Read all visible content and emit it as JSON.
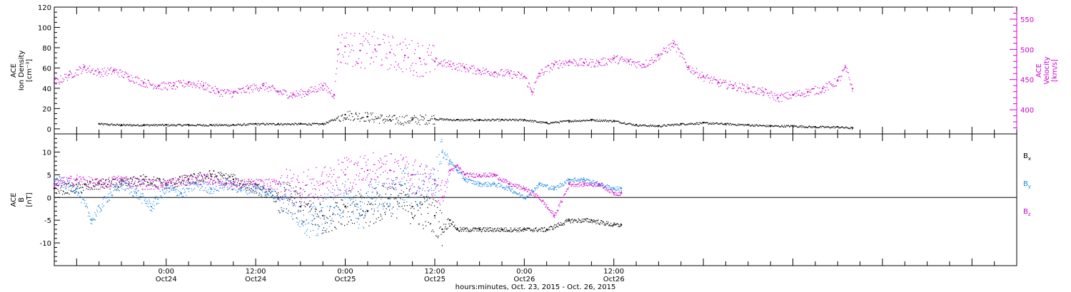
{
  "chart_data": [
    {
      "type": "scatter",
      "panel": "density_velocity",
      "left_ylabel": [
        "ACE",
        "Ion Density",
        "[cm⁻³]"
      ],
      "right_ylabel": [
        "ACE",
        "Velocity",
        "[km/s]"
      ],
      "left_ylim": [
        -5,
        120
      ],
      "left_yticks": [
        "0",
        "20",
        "40",
        "60",
        "80",
        "100",
        "120"
      ],
      "right_ylim": [
        360,
        570
      ],
      "right_yticks": [
        "400",
        "450",
        "500",
        "550"
      ],
      "series": [
        {
          "name": "",
          "axis": "left",
          "color": "#000000",
          "x": [
            -9,
            -6,
            -3,
            0,
            3,
            6,
            9,
            12,
            15,
            18,
            21,
            24,
            27,
            30,
            33,
            36,
            39,
            42,
            45,
            48,
            51,
            54,
            57,
            60,
            63,
            66,
            69,
            72,
            75,
            78,
            81,
            84,
            87,
            90,
            92
          ],
          "y": [
            5,
            4,
            4,
            4,
            4,
            4,
            4,
            5,
            5,
            5,
            5,
            14,
            12,
            9,
            9,
            10,
            9,
            9,
            9,
            9,
            6,
            8,
            9,
            8,
            4,
            3,
            5,
            6,
            5,
            4,
            3,
            3,
            2,
            2,
            1
          ]
        },
        {
          "name": "",
          "axis": "right",
          "color": "#cc00cc",
          "x": [
            -15,
            -13,
            -11,
            -9,
            -7,
            -5,
            -3,
            -1,
            1,
            3,
            5,
            7,
            9,
            11,
            13,
            15,
            17,
            19,
            21,
            22.5,
            23,
            24,
            26,
            28,
            30,
            32,
            34,
            36,
            38,
            40,
            42,
            44,
            46,
            48,
            49,
            50,
            52,
            54,
            56,
            58,
            60,
            62,
            64,
            66,
            68,
            70,
            72,
            74,
            76,
            78,
            80,
            82,
            84,
            86,
            88,
            90,
            91,
            92
          ],
          "y": [
            445,
            458,
            470,
            462,
            465,
            455,
            445,
            440,
            440,
            445,
            440,
            430,
            428,
            435,
            440,
            430,
            425,
            430,
            440,
            425,
            500,
            505,
            498,
            500,
            495,
            490,
            485,
            480,
            475,
            470,
            465,
            462,
            460,
            455,
            430,
            460,
            475,
            480,
            478,
            478,
            485,
            480,
            475,
            490,
            510,
            470,
            455,
            445,
            440,
            435,
            430,
            420,
            425,
            430,
            435,
            448,
            470,
            435
          ]
        }
      ]
    },
    {
      "type": "scatter",
      "panel": "magnetic_field",
      "ylabel": [
        "ACE",
        "B",
        "[nT]"
      ],
      "ylim": [
        -15,
        14
      ],
      "yticks": [
        "-10",
        "-5",
        "0",
        "5",
        "10"
      ],
      "zero_line": true,
      "xlabel": "hours:minutes, Oct. 23, 2015 - Oct. 26, 2015",
      "xlim": [
        -15,
        114
      ],
      "xticks": [
        {
          "x": 0,
          "time": "0:00",
          "date": "Oct24"
        },
        {
          "x": 12,
          "time": "12:00",
          "date": "Oct24"
        },
        {
          "x": 24,
          "time": "0:00",
          "date": "Oct25"
        },
        {
          "x": 36,
          "time": "12:00",
          "date": "Oct25"
        },
        {
          "x": 48,
          "time": "0:00",
          "date": "Oct26"
        },
        {
          "x": 60,
          "time": "12:00",
          "date": "Oct26"
        }
      ],
      "series": [
        {
          "name": "Bx",
          "label": "B",
          "sub": "x",
          "color": "#000000",
          "x": [
            -15,
            -12,
            -9,
            -6,
            -3,
            0,
            3,
            6,
            9,
            12,
            15,
            18,
            21,
            24,
            27,
            30,
            33,
            36,
            37,
            38,
            39,
            42,
            45,
            48,
            51,
            54,
            57,
            60,
            61
          ],
          "y": [
            2,
            2,
            3,
            3,
            4,
            3,
            4,
            5,
            4,
            2,
            0,
            -2,
            -4,
            -2,
            -3,
            0,
            -2,
            -4,
            -7,
            -5,
            -7,
            -7,
            -7,
            -7,
            -7,
            -5,
            -5,
            -6,
            -6
          ]
        },
        {
          "name": "By",
          "label": "B",
          "sub": "y",
          "color": "#1a88e6",
          "x": [
            -15,
            -12,
            -10,
            -8,
            -6,
            -4,
            -2,
            0,
            2,
            4,
            6,
            8,
            10,
            12,
            14,
            16,
            18,
            20,
            22,
            24,
            26,
            28,
            30,
            32,
            34,
            36,
            37,
            38,
            39,
            40,
            42,
            44,
            46,
            48,
            50,
            52,
            54,
            56,
            58,
            60,
            61
          ],
          "y": [
            4,
            2,
            -5,
            0,
            3,
            1,
            -2,
            2,
            1,
            3,
            2,
            3,
            2,
            2,
            1,
            0,
            -3,
            -6,
            -2,
            0,
            -4,
            2,
            0,
            3,
            2,
            4,
            10,
            8,
            6,
            4,
            3,
            3,
            2,
            0,
            3,
            2,
            4,
            4,
            3,
            2,
            2
          ]
        },
        {
          "name": "Bz",
          "label": "B",
          "sub": "z",
          "color": "#cc00cc",
          "x": [
            -15,
            -12,
            -9,
            -6,
            -3,
            0,
            3,
            6,
            9,
            12,
            15,
            18,
            21,
            24,
            27,
            30,
            33,
            36,
            37,
            38,
            39,
            40,
            42,
            44,
            46,
            48,
            50,
            52,
            54,
            56,
            58,
            60,
            61
          ],
          "y": [
            3,
            4,
            3,
            4,
            3,
            3,
            4,
            4,
            3,
            3,
            3,
            2,
            3,
            5,
            6,
            6,
            5,
            3,
            0,
            6,
            7,
            5,
            5,
            5,
            3,
            2,
            0,
            -4,
            3,
            3,
            3,
            1,
            1
          ]
        }
      ]
    }
  ]
}
